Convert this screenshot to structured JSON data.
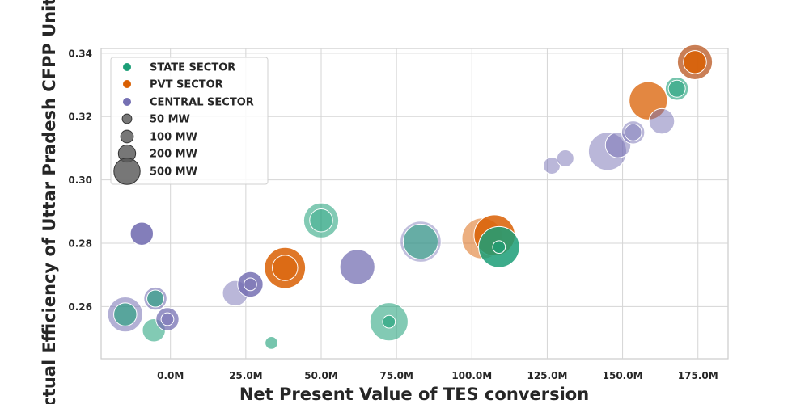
{
  "chart_data": {
    "type": "scatter",
    "title": "",
    "xlabel": "Net Present Value of TES conversion",
    "ylabel": "Actual Efficiency of Uttar Pradesh CFPP Units",
    "xlim": [
      -23000000,
      185000000
    ],
    "ylim": [
      0.2435,
      0.3415
    ],
    "x_ticks": [
      0,
      25000000,
      50000000,
      75000000,
      100000000,
      125000000,
      150000000,
      175000000
    ],
    "x_tick_labels": [
      "0.0M",
      "25.0M",
      "50.0M",
      "75.0M",
      "100.0M",
      "125.0M",
      "150.0M",
      "175.0M"
    ],
    "y_ticks": [
      0.26,
      0.28,
      0.3,
      0.32,
      0.34
    ],
    "y_tick_labels": [
      "0.26",
      "0.28",
      "0.30",
      "0.32",
      "0.34"
    ],
    "grid": true,
    "legend_position": "top-left",
    "sector_colors": {
      "STATE SECTOR": "#1b9e77",
      "PVT SECTOR": "#d95f02",
      "CENTRAL SECTOR": "#7570b3",
      "size": "#555555"
    },
    "legend_items": [
      {
        "label": "STATE SECTOR",
        "kind": "color",
        "key": "STATE SECTOR"
      },
      {
        "label": "PVT SECTOR",
        "kind": "color",
        "key": "PVT SECTOR"
      },
      {
        "label": "CENTRAL SECTOR",
        "kind": "color",
        "key": "CENTRAL SECTOR"
      },
      {
        "label": "50 MW",
        "kind": "size",
        "mw": 50
      },
      {
        "label": "100 MW",
        "kind": "size",
        "mw": 100
      },
      {
        "label": "200 MW",
        "kind": "size",
        "mw": 200
      },
      {
        "label": "500 MW",
        "kind": "size",
        "mw": 500
      }
    ],
    "points": [
      {
        "x": -15000000,
        "y": 0.2575,
        "sector": "CENTRAL SECTOR",
        "mw": 500,
        "alpha": 0.55
      },
      {
        "x": -15000000,
        "y": 0.2575,
        "sector": "STATE SECTOR",
        "mw": 200,
        "alpha": 0.6
      },
      {
        "x": -5000000,
        "y": 0.2625,
        "sector": "CENTRAL SECTOR",
        "mw": 200,
        "alpha": 0.6
      },
      {
        "x": -5000000,
        "y": 0.2625,
        "sector": "STATE SECTOR",
        "mw": 100,
        "alpha": 0.6
      },
      {
        "x": -5500000,
        "y": 0.2525,
        "sector": "STATE SECTOR",
        "mw": 200,
        "alpha": 0.55
      },
      {
        "x": -9500000,
        "y": 0.283,
        "sector": "CENTRAL SECTOR",
        "mw": 200,
        "alpha": 0.9
      },
      {
        "x": -1000000,
        "y": 0.256,
        "sector": "CENTRAL SECTOR",
        "mw": 200,
        "alpha": 0.75
      },
      {
        "x": -1000000,
        "y": 0.256,
        "sector": "CENTRAL SECTOR",
        "mw": 50,
        "alpha": 0.5
      },
      {
        "x": 21500000,
        "y": 0.2642,
        "sector": "CENTRAL SECTOR",
        "mw": 250,
        "alpha": 0.5
      },
      {
        "x": 26500000,
        "y": 0.267,
        "sector": "CENTRAL SECTOR",
        "mw": 250,
        "alpha": 0.85
      },
      {
        "x": 26500000,
        "y": 0.267,
        "sector": "CENTRAL SECTOR",
        "mw": 50,
        "alpha": 0.35
      },
      {
        "x": 33500000,
        "y": 0.2485,
        "sector": "STATE SECTOR",
        "mw": 50,
        "alpha": 0.6
      },
      {
        "x": 38000000,
        "y": 0.2722,
        "sector": "PVT SECTOR",
        "mw": 700,
        "alpha": 0.85
      },
      {
        "x": 38000000,
        "y": 0.2722,
        "sector": "PVT SECTOR",
        "mw": 250,
        "alpha": 0.5
      },
      {
        "x": 50000000,
        "y": 0.2872,
        "sector": "STATE SECTOR",
        "mw": 500,
        "alpha": 0.55
      },
      {
        "x": 50000000,
        "y": 0.2872,
        "sector": "STATE SECTOR",
        "mw": 200,
        "alpha": 0.35
      },
      {
        "x": 62000000,
        "y": 0.2725,
        "sector": "CENTRAL SECTOR",
        "mw": 500,
        "alpha": 0.75
      },
      {
        "x": 72500000,
        "y": 0.2552,
        "sector": "STATE SECTOR",
        "mw": 600,
        "alpha": 0.55
      },
      {
        "x": 72500000,
        "y": 0.2552,
        "sector": "STATE SECTOR",
        "mw": 50,
        "alpha": 0.6
      },
      {
        "x": 83000000,
        "y": 0.2805,
        "sector": "CENTRAL SECTOR",
        "mw": 700,
        "alpha": 0.45
      },
      {
        "x": 83000000,
        "y": 0.2805,
        "sector": "STATE SECTOR",
        "mw": 500,
        "alpha": 0.55
      },
      {
        "x": 103500000,
        "y": 0.2815,
        "sector": "PVT SECTOR",
        "mw": 700,
        "alpha": 0.5
      },
      {
        "x": 107500000,
        "y": 0.2825,
        "sector": "PVT SECTOR",
        "mw": 700,
        "alpha": 0.85
      },
      {
        "x": 109000000,
        "y": 0.2788,
        "sector": "STATE SECTOR",
        "mw": 700,
        "alpha": 0.85
      },
      {
        "x": 109000000,
        "y": 0.2788,
        "sector": "STATE SECTOR",
        "mw": 50,
        "alpha": 0.6
      },
      {
        "x": 126500000,
        "y": 0.3045,
        "sector": "CENTRAL SECTOR",
        "mw": 100,
        "alpha": 0.5
      },
      {
        "x": 131000000,
        "y": 0.3068,
        "sector": "CENTRAL SECTOR",
        "mw": 100,
        "alpha": 0.5
      },
      {
        "x": 145000000,
        "y": 0.309,
        "sector": "CENTRAL SECTOR",
        "mw": 600,
        "alpha": 0.5
      },
      {
        "x": 148500000,
        "y": 0.311,
        "sector": "CENTRAL SECTOR",
        "mw": 250,
        "alpha": 0.5
      },
      {
        "x": 153500000,
        "y": 0.315,
        "sector": "CENTRAL SECTOR",
        "mw": 200,
        "alpha": 0.5
      },
      {
        "x": 153500000,
        "y": 0.315,
        "sector": "CENTRAL SECTOR",
        "mw": 100,
        "alpha": 0.4
      },
      {
        "x": 158500000,
        "y": 0.325,
        "sector": "PVT SECTOR",
        "mw": 600,
        "alpha": 0.75
      },
      {
        "x": 163000000,
        "y": 0.3185,
        "sector": "CENTRAL SECTOR",
        "mw": 250,
        "alpha": 0.5
      },
      {
        "x": 168000000,
        "y": 0.3288,
        "sector": "STATE SECTOR",
        "mw": 200,
        "alpha": 0.6
      },
      {
        "x": 168000000,
        "y": 0.3288,
        "sector": "STATE SECTOR",
        "mw": 100,
        "alpha": 0.5
      },
      {
        "x": 174000000,
        "y": 0.3372,
        "sector": "CENTRAL SECTOR",
        "mw": 500,
        "alpha": 0.55
      },
      {
        "x": 174000000,
        "y": 0.3372,
        "sector": "PVT SECTOR",
        "mw": 500,
        "alpha": 0.6
      },
      {
        "x": 174000000,
        "y": 0.3372,
        "sector": "PVT SECTOR",
        "mw": 200,
        "alpha": 0.85
      }
    ]
  }
}
